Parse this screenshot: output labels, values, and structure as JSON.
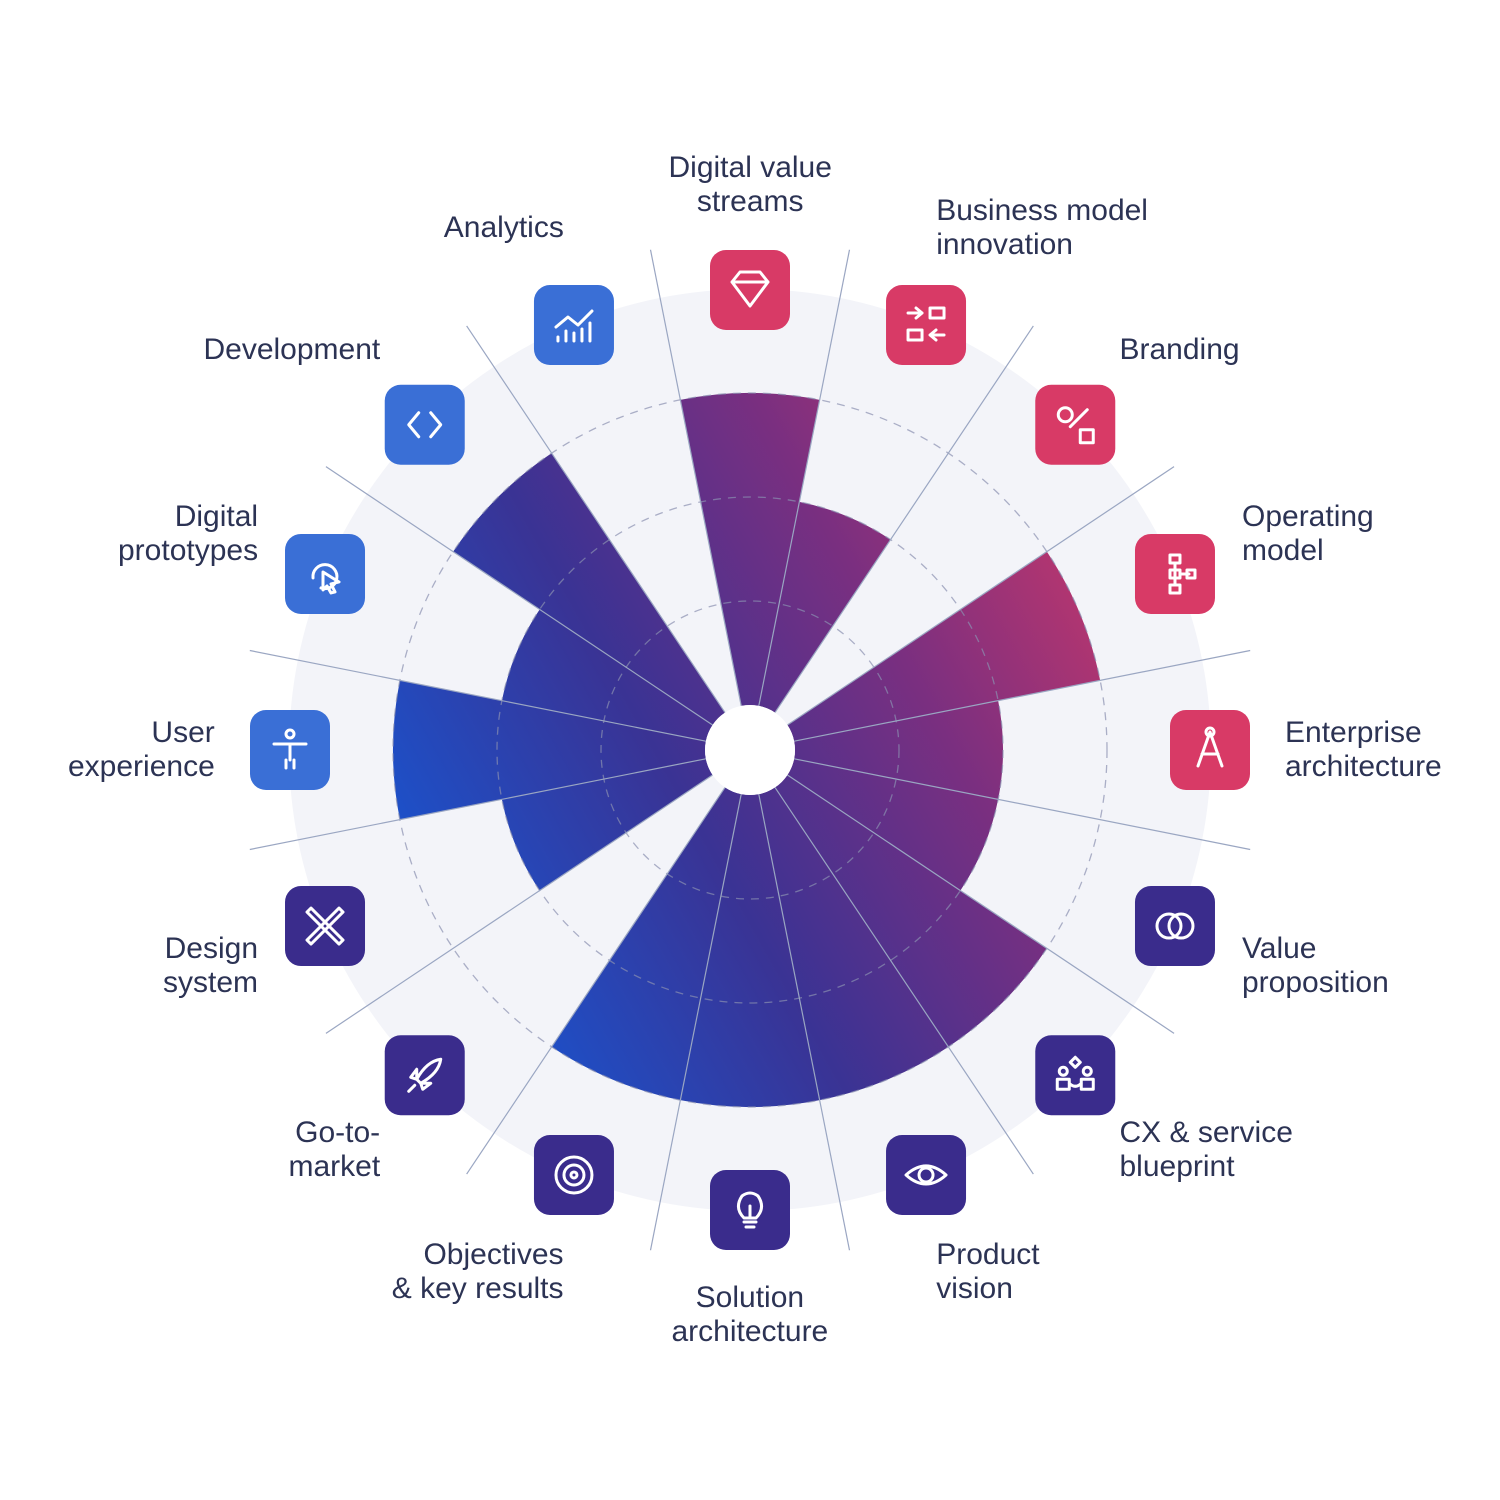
{
  "chart_data": {
    "type": "polar-area",
    "categories": [
      "Digital value\nstreams",
      "Business model\ninnovation",
      "Branding",
      "Operating\nmodel",
      "Enterprise\narchitecture",
      "Value\nproposition",
      "CX & service\nblueprint",
      "Product\nvision",
      "Solution\narchitecture",
      "Objectives\n& key results",
      "Go-to-\nmarket",
      "Design\nsystem",
      "User\nexperience",
      "Digital\nprototypes",
      "Development",
      "Analytics"
    ],
    "values": [
      3,
      2,
      0,
      3,
      2,
      2,
      3,
      3,
      3,
      3,
      0,
      2,
      3,
      2,
      3,
      0
    ],
    "icon_colors": [
      "#d83a66",
      "#d83a66",
      "#d83a66",
      "#d83a66",
      "#d83a66",
      "#3a2c8c",
      "#3a2c8c",
      "#3a2c8c",
      "#3a2c8c",
      "#3a2c8c",
      "#3a2c8c",
      "#3a2c8c",
      "#3a6fd6",
      "#3a6fd6",
      "#3a6fd6",
      "#3a6fd6"
    ],
    "gradient_colors": [
      "#c8386a",
      "#7a2f80",
      "#3a3394",
      "#1d50c8"
    ],
    "ylim": [
      0,
      4
    ],
    "yticks": [
      1,
      2,
      3
    ],
    "grid": true
  }
}
